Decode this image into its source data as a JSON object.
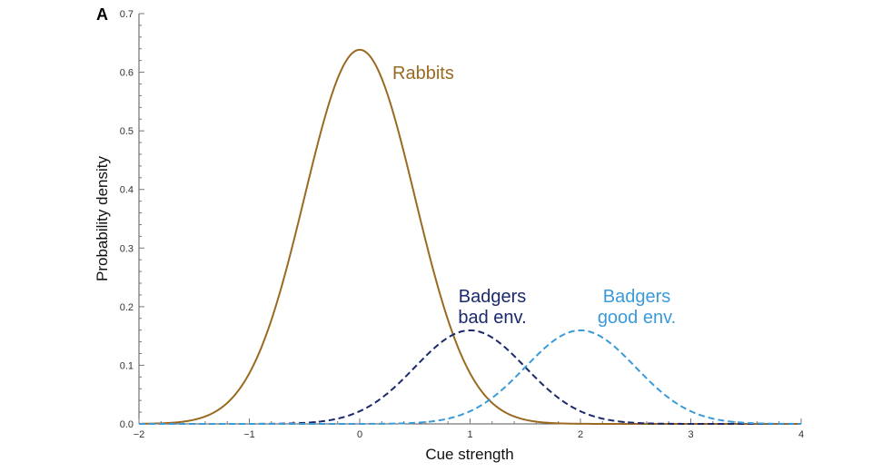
{
  "chart_data": {
    "type": "line",
    "panel_label": "A",
    "xlabel": "Cue strength",
    "ylabel": "Probability density",
    "xlim": [
      -2,
      4
    ],
    "ylim": [
      0,
      0.7
    ],
    "xticks": [
      -2,
      -1,
      0,
      1,
      2,
      3,
      4
    ],
    "xtick_labels": [
      "−2",
      "−1",
      "0",
      "1",
      "2",
      "3",
      "4"
    ],
    "yticks": [
      0,
      0.1,
      0.2,
      0.3,
      0.4,
      0.5,
      0.6,
      0.7
    ],
    "ytick_labels": [
      "0.0",
      "0.1",
      "0.2",
      "0.3",
      "0.4",
      "0.5",
      "0.6",
      "0.7"
    ],
    "grid": false,
    "series": [
      {
        "name": "Rabbits",
        "label_lines": [
          "Rabbits"
        ],
        "distribution": "weighted normal",
        "weight": 0.8,
        "mean": 0,
        "sd": 0.5,
        "peak": 0.64,
        "style": "solid",
        "color": "#9a6a22"
      },
      {
        "name": "Badgers bad env.",
        "label_lines": [
          "Badgers",
          "bad env."
        ],
        "distribution": "weighted normal",
        "weight": 0.2,
        "mean": 1,
        "sd": 0.5,
        "peak": 0.16,
        "style": "dashed",
        "color": "#1b2a6b"
      },
      {
        "name": "Badgers good env.",
        "label_lines": [
          "Badgers",
          "good env."
        ],
        "distribution": "weighted normal",
        "weight": 0.2,
        "mean": 2,
        "sd": 0.5,
        "peak": 0.16,
        "style": "dashed",
        "color": "#3b9ad8"
      }
    ]
  }
}
